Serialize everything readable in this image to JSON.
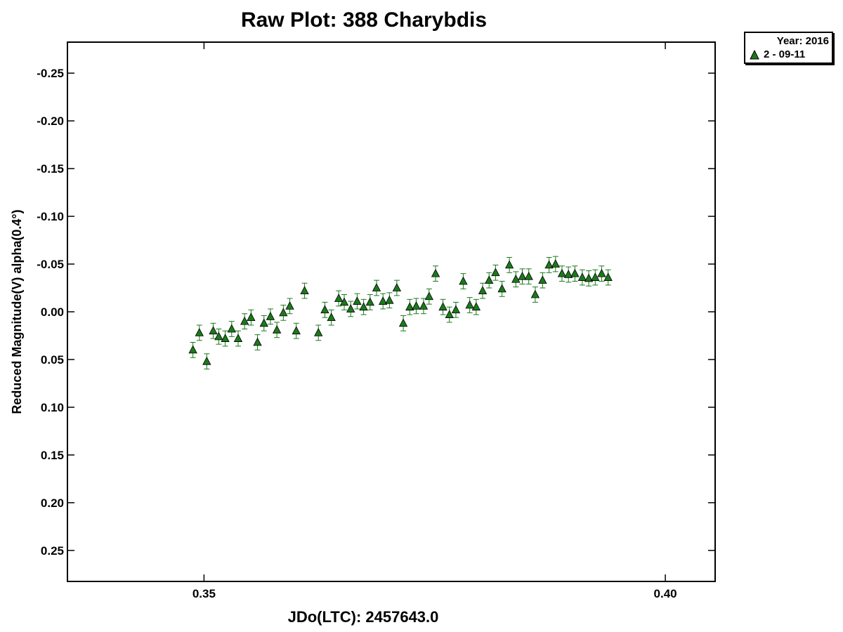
{
  "chart_data": {
    "type": "scatter",
    "title": "Raw Plot: 388 Charybdis",
    "xlabel": "JDo(LTC): 2457643.0",
    "ylabel": "Reduced Magnitude(V) alpha(0.4°)",
    "xlim": [
      0.3352,
      0.4054
    ],
    "ylim": [
      0.2825,
      -0.2825
    ],
    "y_inverted": true,
    "grid": false,
    "legend_placement": "top-right outside",
    "x_ticks": [
      0.35,
      0.4
    ],
    "x_tick_labels": [
      "0.35",
      "0.40"
    ],
    "y_ticks": [
      -0.25,
      -0.2,
      -0.15,
      -0.1,
      -0.05,
      0.0,
      0.05,
      0.1,
      0.15,
      0.2,
      0.25
    ],
    "y_tick_labels": [
      "-0.25",
      "-0.20",
      "-0.15",
      "-0.10",
      "-0.05",
      "0.00",
      "0.05",
      "0.10",
      "0.15",
      "0.20",
      "0.25"
    ],
    "legend": {
      "title": "Year: 2016",
      "entries": [
        {
          "label": "2 - 09-11",
          "color": "#1a7a1a",
          "marker": "triangle"
        }
      ]
    },
    "series": [
      {
        "name": "2 - 09-11",
        "color": "#1a7a1a",
        "marker": "triangle",
        "error": 0.008,
        "x": [
          0.3488,
          0.3495,
          0.3503,
          0.351,
          0.3516,
          0.3523,
          0.353,
          0.3537,
          0.3544,
          0.3551,
          0.3558,
          0.3565,
          0.3572,
          0.3579,
          0.3586,
          0.3593,
          0.36,
          0.3609,
          0.3624,
          0.3631,
          0.3638,
          0.3646,
          0.3652,
          0.3659,
          0.3666,
          0.3673,
          0.368,
          0.3687,
          0.3694,
          0.3701,
          0.3709,
          0.3716,
          0.3723,
          0.373,
          0.3738,
          0.3744,
          0.3751,
          0.3759,
          0.3766,
          0.3773,
          0.3781,
          0.3788,
          0.3795,
          0.3802,
          0.3809,
          0.3816,
          0.3823,
          0.3831,
          0.3838,
          0.3845,
          0.3852,
          0.3859,
          0.3867,
          0.3874,
          0.3881,
          0.3888,
          0.3895,
          0.3902,
          0.391,
          0.3917,
          0.3924,
          0.3931,
          0.3938
        ],
        "y": [
          0.04,
          0.022,
          0.052,
          0.02,
          0.026,
          0.028,
          0.018,
          0.028,
          0.01,
          0.006,
          0.032,
          0.012,
          0.005,
          0.019,
          0.001,
          -0.006,
          0.02,
          -0.022,
          0.022,
          -0.002,
          0.006,
          -0.014,
          -0.01,
          -0.003,
          -0.011,
          -0.005,
          -0.01,
          -0.025,
          -0.011,
          -0.012,
          -0.025,
          0.012,
          -0.005,
          -0.006,
          -0.006,
          -0.016,
          -0.04,
          -0.005,
          0.003,
          -0.002,
          -0.032,
          -0.007,
          -0.005,
          -0.022,
          -0.033,
          -0.041,
          -0.024,
          -0.049,
          -0.034,
          -0.037,
          -0.037,
          -0.018,
          -0.033,
          -0.049,
          -0.05,
          -0.04,
          -0.039,
          -0.04,
          -0.036,
          -0.035,
          -0.036,
          -0.04,
          -0.036
        ]
      }
    ]
  }
}
